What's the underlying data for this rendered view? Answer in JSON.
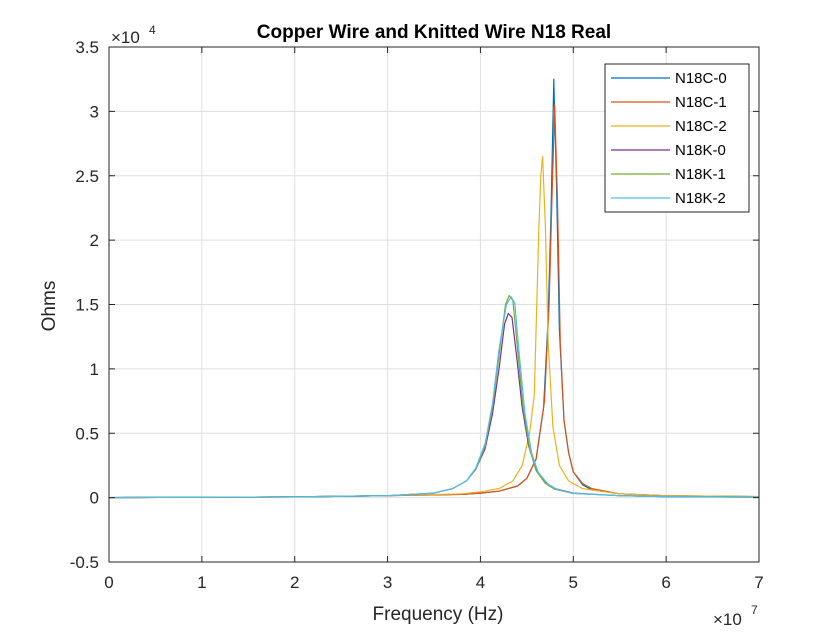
{
  "chart_data": {
    "type": "line",
    "title": "Copper Wire and Knitted Wire N18 Real",
    "xlabel": "Frequency (Hz)",
    "ylabel": "Ohms",
    "x_exponent": "×10",
    "x_exponent_power": "7",
    "y_exponent": "×10",
    "y_exponent_power": "4",
    "xlim": [
      0,
      70000000
    ],
    "ylim": [
      -5000,
      35000
    ],
    "x_ticks": [
      0,
      10000000,
      20000000,
      30000000,
      40000000,
      50000000,
      60000000,
      70000000
    ],
    "x_tick_labels": [
      "0",
      "1",
      "2",
      "3",
      "4",
      "5",
      "6",
      "7"
    ],
    "y_ticks": [
      -5000,
      0,
      5000,
      10000,
      15000,
      20000,
      25000,
      30000,
      35000
    ],
    "y_tick_labels": [
      "-0.5",
      "0",
      "0.5",
      "1",
      "1.5",
      "2",
      "2.5",
      "3",
      "3.5"
    ],
    "grid": true,
    "legend_position": "top-right",
    "series": [
      {
        "name": "N18C-0",
        "color": "#0072BD",
        "points": [
          [
            0,
            0
          ],
          [
            20000000,
            60
          ],
          [
            30000000,
            150
          ],
          [
            38000000,
            250
          ],
          [
            40000000,
            350
          ],
          [
            42000000,
            500
          ],
          [
            44000000,
            900
          ],
          [
            45000000,
            1500
          ],
          [
            46000000,
            3000
          ],
          [
            46800000,
            7000
          ],
          [
            47300000,
            14000
          ],
          [
            47600000,
            22000
          ],
          [
            47900000,
            32500
          ],
          [
            48200000,
            24000
          ],
          [
            48500000,
            13000
          ],
          [
            49000000,
            6000
          ],
          [
            49500000,
            3500
          ],
          [
            50000000,
            2000
          ],
          [
            51000000,
            1000
          ],
          [
            52000000,
            600
          ],
          [
            55000000,
            300
          ],
          [
            60000000,
            150
          ],
          [
            70000000,
            80
          ]
        ]
      },
      {
        "name": "N18C-1",
        "color": "#D95319",
        "points": [
          [
            0,
            0
          ],
          [
            20000000,
            60
          ],
          [
            30000000,
            150
          ],
          [
            38000000,
            250
          ],
          [
            40000000,
            350
          ],
          [
            42000000,
            500
          ],
          [
            44000000,
            900
          ],
          [
            45000000,
            1500
          ],
          [
            46000000,
            3000
          ],
          [
            46900000,
            7500
          ],
          [
            47400000,
            15000
          ],
          [
            47700000,
            23000
          ],
          [
            48000000,
            30500
          ],
          [
            48300000,
            23000
          ],
          [
            48600000,
            12000
          ],
          [
            49000000,
            6000
          ],
          [
            49500000,
            3500
          ],
          [
            50000000,
            2000
          ],
          [
            51000000,
            1100
          ],
          [
            52000000,
            700
          ],
          [
            55000000,
            300
          ],
          [
            60000000,
            150
          ],
          [
            70000000,
            80
          ]
        ]
      },
      {
        "name": "N18C-2",
        "color": "#EDB120",
        "points": [
          [
            0,
            0
          ],
          [
            20000000,
            60
          ],
          [
            30000000,
            150
          ],
          [
            38000000,
            300
          ],
          [
            40000000,
            450
          ],
          [
            42000000,
            700
          ],
          [
            43500000,
            1300
          ],
          [
            44500000,
            2500
          ],
          [
            45300000,
            5000
          ],
          [
            45800000,
            8000
          ],
          [
            46300000,
            21000
          ],
          [
            46500000,
            25000
          ],
          [
            46700000,
            26500
          ],
          [
            47000000,
            21000
          ],
          [
            47300000,
            12000
          ],
          [
            47800000,
            5500
          ],
          [
            48500000,
            2500
          ],
          [
            49500000,
            1300
          ],
          [
            51000000,
            700
          ],
          [
            55000000,
            300
          ],
          [
            60000000,
            150
          ],
          [
            70000000,
            80
          ]
        ]
      },
      {
        "name": "N18K-0",
        "color": "#7E2F8E",
        "points": [
          [
            0,
            0
          ],
          [
            20000000,
            60
          ],
          [
            30000000,
            150
          ],
          [
            35000000,
            350
          ],
          [
            37000000,
            700
          ],
          [
            38500000,
            1300
          ],
          [
            39500000,
            2200
          ],
          [
            40500000,
            3800
          ],
          [
            41300000,
            6500
          ],
          [
            42000000,
            10000
          ],
          [
            42600000,
            13500
          ],
          [
            43000000,
            14300
          ],
          [
            43400000,
            14000
          ],
          [
            43900000,
            11000
          ],
          [
            44500000,
            7000
          ],
          [
            45200000,
            4000
          ],
          [
            46000000,
            2200
          ],
          [
            47000000,
            1200
          ],
          [
            48000000,
            700
          ],
          [
            50000000,
            350
          ],
          [
            55000000,
            150
          ],
          [
            60000000,
            80
          ],
          [
            70000000,
            40
          ]
        ]
      },
      {
        "name": "N18K-1",
        "color": "#77AC30",
        "points": [
          [
            0,
            0
          ],
          [
            20000000,
            60
          ],
          [
            30000000,
            150
          ],
          [
            35000000,
            350
          ],
          [
            37000000,
            700
          ],
          [
            38500000,
            1300
          ],
          [
            39500000,
            2200
          ],
          [
            40500000,
            4000
          ],
          [
            41300000,
            7000
          ],
          [
            42000000,
            11000
          ],
          [
            42700000,
            15000
          ],
          [
            43100000,
            15700
          ],
          [
            43500000,
            15300
          ],
          [
            44000000,
            11500
          ],
          [
            44600000,
            7000
          ],
          [
            45300000,
            3800
          ],
          [
            46000000,
            2100
          ],
          [
            47000000,
            1100
          ],
          [
            48000000,
            650
          ],
          [
            50000000,
            330
          ],
          [
            55000000,
            150
          ],
          [
            60000000,
            80
          ],
          [
            70000000,
            40
          ]
        ]
      },
      {
        "name": "N18K-2",
        "color": "#4DBEEE",
        "points": [
          [
            0,
            0
          ],
          [
            20000000,
            60
          ],
          [
            30000000,
            150
          ],
          [
            35000000,
            350
          ],
          [
            37000000,
            700
          ],
          [
            38500000,
            1300
          ],
          [
            39500000,
            2300
          ],
          [
            40500000,
            4200
          ],
          [
            41300000,
            7300
          ],
          [
            42000000,
            11500
          ],
          [
            42800000,
            15000
          ],
          [
            43300000,
            15600
          ],
          [
            43700000,
            15100
          ],
          [
            44200000,
            11000
          ],
          [
            44800000,
            6500
          ],
          [
            45500000,
            3500
          ],
          [
            46200000,
            2000
          ],
          [
            47200000,
            1100
          ],
          [
            48200000,
            650
          ],
          [
            50000000,
            330
          ],
          [
            55000000,
            150
          ],
          [
            60000000,
            80
          ],
          [
            70000000,
            40
          ]
        ]
      }
    ]
  }
}
